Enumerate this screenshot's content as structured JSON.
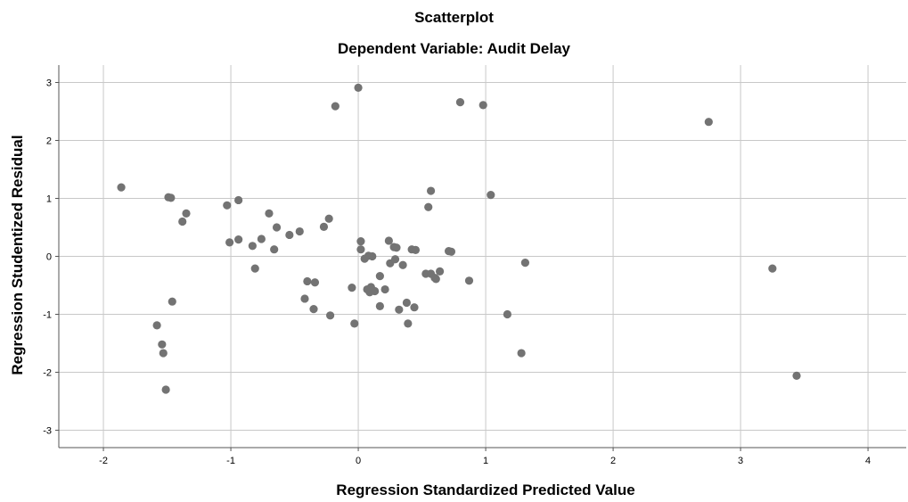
{
  "chart_data": {
    "type": "scatter",
    "title": "Scatterplot",
    "subtitle": "Dependent Variable: Audit Delay",
    "xlabel": "Regression Standardized Predicted Value",
    "ylabel": "Regression Studentized Residual",
    "xlim": [
      -2.35,
      4.3
    ],
    "ylim": [
      -3.3,
      3.3
    ],
    "x_ticks": [
      -2,
      -1,
      0,
      1,
      2,
      3,
      4
    ],
    "y_ticks": [
      -3,
      -2,
      -1,
      0,
      1,
      2,
      3
    ],
    "grid": true,
    "point_color": "#737373",
    "points": [
      [
        -1.86,
        1.19
      ],
      [
        -1.58,
        -1.19
      ],
      [
        -1.54,
        -1.52
      ],
      [
        -1.53,
        -1.67
      ],
      [
        -1.51,
        -2.3
      ],
      [
        -1.49,
        1.02
      ],
      [
        -1.47,
        1.01
      ],
      [
        -1.46,
        -0.78
      ],
      [
        -1.38,
        0.6
      ],
      [
        -1.35,
        0.74
      ],
      [
        -1.03,
        0.88
      ],
      [
        -1.01,
        0.24
      ],
      [
        -0.94,
        0.97
      ],
      [
        -0.94,
        0.29
      ],
      [
        -0.83,
        0.18
      ],
      [
        -0.81,
        -0.21
      ],
      [
        -0.76,
        0.3
      ],
      [
        -0.7,
        0.74
      ],
      [
        -0.66,
        0.12
      ],
      [
        -0.64,
        0.5
      ],
      [
        -0.54,
        0.37
      ],
      [
        -0.46,
        0.43
      ],
      [
        -0.42,
        -0.73
      ],
      [
        -0.4,
        -0.43
      ],
      [
        -0.35,
        -0.91
      ],
      [
        -0.34,
        -0.45
      ],
      [
        -0.27,
        0.51
      ],
      [
        -0.23,
        0.65
      ],
      [
        -0.22,
        -1.02
      ],
      [
        -0.18,
        2.59
      ],
      [
        -0.05,
        -0.54
      ],
      [
        -0.03,
        -1.16
      ],
      [
        0.0,
        2.91
      ],
      [
        0.02,
        0.26
      ],
      [
        0.02,
        0.12
      ],
      [
        0.05,
        -0.04
      ],
      [
        0.07,
        -0.57
      ],
      [
        0.08,
        0.01
      ],
      [
        0.09,
        -0.62
      ],
      [
        0.1,
        -0.53
      ],
      [
        0.11,
        0.0
      ],
      [
        0.13,
        -0.6
      ],
      [
        0.17,
        -0.34
      ],
      [
        0.17,
        -0.86
      ],
      [
        0.21,
        -0.57
      ],
      [
        0.24,
        0.27
      ],
      [
        0.25,
        -0.12
      ],
      [
        0.28,
        0.16
      ],
      [
        0.29,
        -0.05
      ],
      [
        0.3,
        0.15
      ],
      [
        0.32,
        -0.92
      ],
      [
        0.35,
        -0.15
      ],
      [
        0.38,
        -0.8
      ],
      [
        0.39,
        -1.16
      ],
      [
        0.42,
        0.12
      ],
      [
        0.44,
        -0.88
      ],
      [
        0.45,
        0.11
      ],
      [
        0.53,
        -0.3
      ],
      [
        0.55,
        0.85
      ],
      [
        0.57,
        -0.3
      ],
      [
        0.57,
        1.13
      ],
      [
        0.6,
        -0.37
      ],
      [
        0.61,
        -0.39
      ],
      [
        0.64,
        -0.26
      ],
      [
        0.71,
        0.09
      ],
      [
        0.73,
        0.08
      ],
      [
        0.8,
        2.66
      ],
      [
        0.87,
        -0.42
      ],
      [
        0.98,
        2.61
      ],
      [
        1.04,
        1.06
      ],
      [
        1.17,
        -1.0
      ],
      [
        1.28,
        -1.67
      ],
      [
        1.31,
        -0.11
      ],
      [
        2.75,
        2.32
      ],
      [
        3.25,
        -0.21
      ],
      [
        3.44,
        -2.06
      ]
    ]
  }
}
